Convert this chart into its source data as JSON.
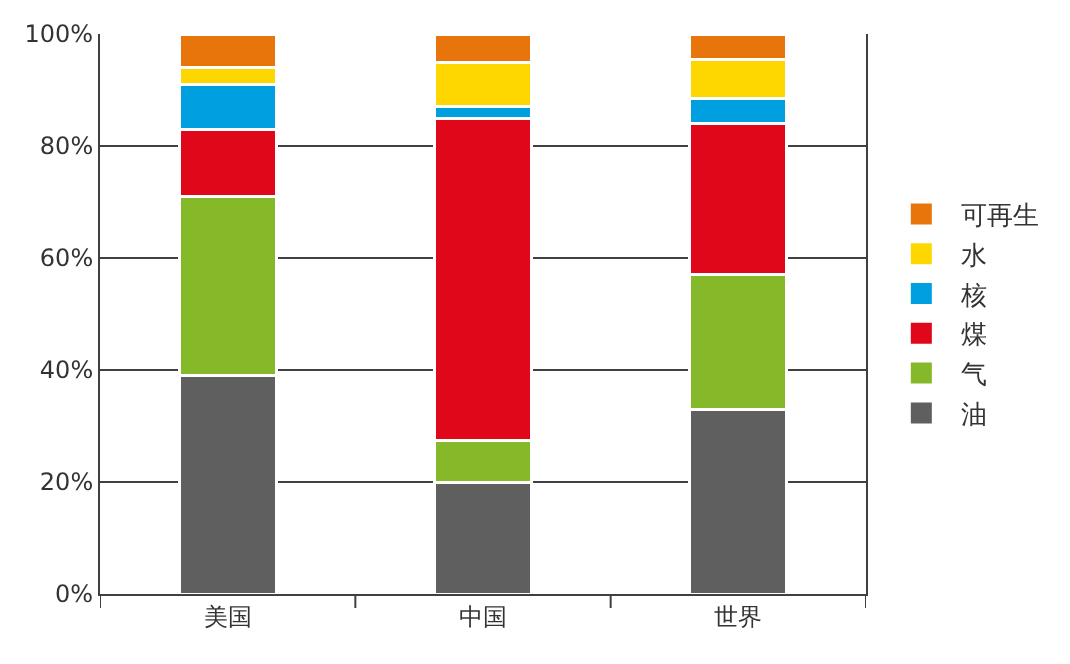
{
  "chart_data": {
    "type": "bar",
    "stacked": true,
    "categories": [
      "美国",
      "中国",
      "世界"
    ],
    "series": [
      {
        "name": "油",
        "color": "#5f5f5f",
        "values": [
          39,
          20,
          33
        ]
      },
      {
        "name": "气",
        "color": "#86b92a",
        "values": [
          32,
          7.5,
          24
        ]
      },
      {
        "name": "煤",
        "color": "#e0071b",
        "values": [
          12,
          57.5,
          27
        ]
      },
      {
        "name": "核",
        "color": "#00a0e0",
        "values": [
          8,
          2,
          4.5
        ]
      },
      {
        "name": "水",
        "color": "#ffd700",
        "values": [
          3,
          8,
          7
        ]
      },
      {
        "name": "可再生",
        "color": "#e8740c",
        "values": [
          6,
          5,
          4.5
        ]
      }
    ],
    "ylim": [
      0,
      100
    ],
    "yticks": [
      {
        "value": 0,
        "label": "0%"
      },
      {
        "value": 20,
        "label": "20%"
      },
      {
        "value": 40,
        "label": "40%"
      },
      {
        "value": 60,
        "label": "60%"
      },
      {
        "value": 80,
        "label": "80%"
      },
      {
        "value": 100,
        "label": "100%"
      }
    ],
    "grid": "y",
    "legend": "right"
  }
}
